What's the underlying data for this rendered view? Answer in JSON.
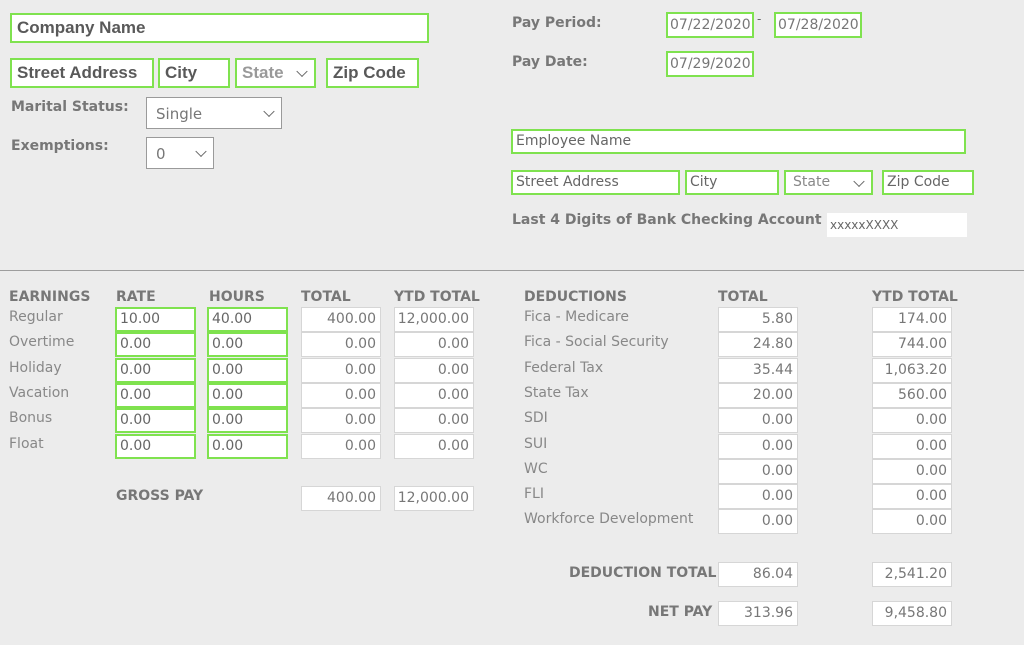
{
  "company": {
    "name": "Company Name",
    "street": "Street Address",
    "city": "City",
    "state": "State",
    "zip": "Zip Code"
  },
  "marital_status": {
    "label": "Marital Status:",
    "value": "Single"
  },
  "exemptions": {
    "label": "Exemptions:",
    "value": "0"
  },
  "pay_period": {
    "label": "Pay Period:",
    "start": "07/22/2020",
    "separator": "-",
    "end": "07/28/2020"
  },
  "pay_date": {
    "label": "Pay Date:",
    "value": "07/29/2020"
  },
  "employee": {
    "name": "Employee Name",
    "street": "Street Address",
    "city": "City",
    "state": "State",
    "zip": "Zip Code"
  },
  "bank": {
    "label": "Last 4 Digits of Bank Checking Account",
    "value": "xxxxxXXXX"
  },
  "earnings": {
    "headers": [
      "EARNINGS",
      "RATE",
      "HOURS",
      "TOTAL",
      "YTD TOTAL"
    ],
    "rows": [
      {
        "name": "Regular",
        "rate": "10.00",
        "hours": "40.00",
        "total": "400.00",
        "ytd": "12,000.00"
      },
      {
        "name": "Overtime",
        "rate": "0.00",
        "hours": "0.00",
        "total": "0.00",
        "ytd": "0.00"
      },
      {
        "name": "Holiday",
        "rate": "0.00",
        "hours": "0.00",
        "total": "0.00",
        "ytd": "0.00"
      },
      {
        "name": "Vacation",
        "rate": "0.00",
        "hours": "0.00",
        "total": "0.00",
        "ytd": "0.00"
      },
      {
        "name": "Bonus",
        "rate": "0.00",
        "hours": "0.00",
        "total": "0.00",
        "ytd": "0.00"
      },
      {
        "name": "Float",
        "rate": "0.00",
        "hours": "0.00",
        "total": "0.00",
        "ytd": "0.00"
      }
    ],
    "gross_label": "GROSS PAY",
    "gross_total": "400.00",
    "gross_ytd": "12,000.00"
  },
  "deductions": {
    "headers": [
      "DEDUCTIONS",
      "TOTAL",
      "YTD TOTAL"
    ],
    "rows": [
      {
        "name": "Fica - Medicare",
        "total": "5.80",
        "ytd": "174.00"
      },
      {
        "name": "Fica - Social Security",
        "total": "24.80",
        "ytd": "744.00"
      },
      {
        "name": "Federal Tax",
        "total": "35.44",
        "ytd": "1,063.20"
      },
      {
        "name": "State Tax",
        "total": "20.00",
        "ytd": "560.00"
      },
      {
        "name": "SDI",
        "total": "0.00",
        "ytd": "0.00"
      },
      {
        "name": "SUI",
        "total": "0.00",
        "ytd": "0.00"
      },
      {
        "name": "WC",
        "total": "0.00",
        "ytd": "0.00"
      },
      {
        "name": "FLI",
        "total": "0.00",
        "ytd": "0.00"
      },
      {
        "name": "Workforce Development",
        "total": "0.00",
        "ytd": "0.00"
      }
    ],
    "total_label": "DEDUCTION TOTAL",
    "total_total": "86.04",
    "total_ytd": "2,541.20",
    "net_label": "NET PAY",
    "net_total": "313.96",
    "net_ytd": "9,458.80"
  },
  "colors": {
    "accent_border": "#7fe24f",
    "background": "#ececec"
  },
  "icons": {
    "dropdown": "chevron-down-icon"
  }
}
